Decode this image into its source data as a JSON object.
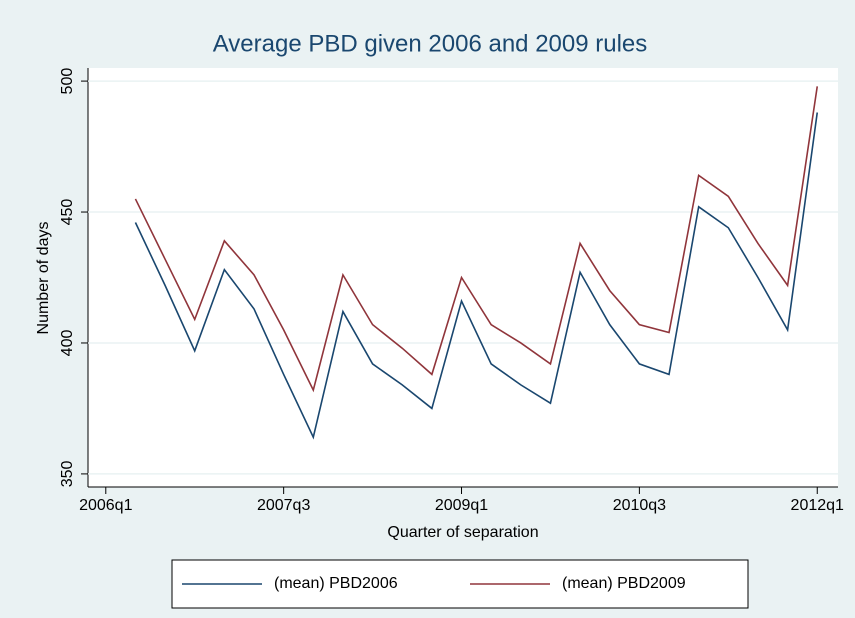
{
  "chart_data": {
    "type": "line",
    "title": "Average PBD given 2006 and 2009 rules",
    "xlabel": "Quarter of separation",
    "ylabel": "Number of days",
    "x": [
      185,
      186,
      187,
      188,
      189,
      190,
      191,
      192,
      193,
      194,
      195,
      196,
      197,
      198,
      199,
      200,
      201,
      202,
      203,
      204,
      205,
      206,
      207,
      208
    ],
    "series": [
      {
        "name": "(mean) PBD2006",
        "color": "#1a476f",
        "values": [
          446,
          422,
          397,
          428,
          413,
          388,
          364,
          412,
          392,
          384,
          375,
          416,
          392,
          384,
          377,
          427,
          407,
          392,
          388,
          452,
          444,
          425,
          405,
          488
        ]
      },
      {
        "name": "(mean) PBD2009",
        "color": "#90353b",
        "values": [
          455,
          432,
          409,
          439,
          426,
          405,
          382,
          426,
          407,
          398,
          388,
          425,
          407,
          400,
          392,
          438,
          420,
          407,
          404,
          464,
          456,
          438,
          422,
          498
        ]
      }
    ],
    "xlim": [
      183.4,
      208.7
    ],
    "xticks": [
      {
        "value": 184,
        "label": "2006q1"
      },
      {
        "value": 190,
        "label": "2007q3"
      },
      {
        "value": 196,
        "label": "2009q1"
      },
      {
        "value": 202,
        "label": "2010q3"
      },
      {
        "value": 208,
        "label": "2012q1"
      }
    ],
    "ylim": [
      345,
      505
    ],
    "yticks": [
      350,
      400,
      450,
      500
    ],
    "grid": true,
    "legend": "bottom"
  }
}
